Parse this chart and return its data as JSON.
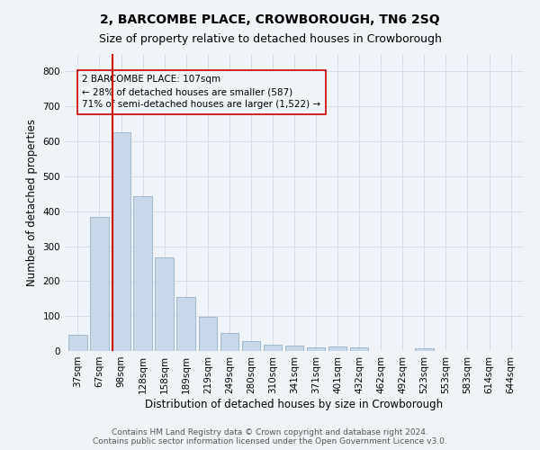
{
  "title": "2, BARCOMBE PLACE, CROWBOROUGH, TN6 2SQ",
  "subtitle": "Size of property relative to detached houses in Crowborough",
  "xlabel": "Distribution of detached houses by size in Crowborough",
  "ylabel": "Number of detached properties",
  "categories": [
    "37sqm",
    "67sqm",
    "98sqm",
    "128sqm",
    "158sqm",
    "189sqm",
    "219sqm",
    "249sqm",
    "280sqm",
    "310sqm",
    "341sqm",
    "371sqm",
    "401sqm",
    "432sqm",
    "462sqm",
    "492sqm",
    "523sqm",
    "553sqm",
    "583sqm",
    "614sqm",
    "644sqm"
  ],
  "values": [
    47,
    385,
    625,
    442,
    268,
    155,
    97,
    52,
    28,
    17,
    16,
    10,
    12,
    10,
    0,
    0,
    7,
    0,
    0,
    0,
    0
  ],
  "bar_color": "#c8d8e8",
  "bar_edgecolor": "#a0b8cc",
  "vline_x_index": 2,
  "vline_color": "#cc0000",
  "annotation_text": "2 BARCOMBE PLACE: 107sqm\n← 28% of detached houses are smaller (587)\n71% of semi-detached houses are larger (1,522) →",
  "annotation_box_edgecolor": "#cc0000",
  "ylim": [
    0,
    850
  ],
  "yticks": [
    0,
    100,
    200,
    300,
    400,
    500,
    600,
    700,
    800
  ],
  "grid_color": "#d0d8e8",
  "background_color": "#f0f4f8",
  "footer": "Contains HM Land Registry data © Crown copyright and database right 2024.\nContains public sector information licensed under the Open Government Licence v3.0.",
  "title_fontsize": 10,
  "subtitle_fontsize": 9,
  "xlabel_fontsize": 8.5,
  "ylabel_fontsize": 8.5,
  "tick_fontsize": 7.5,
  "annotation_fontsize": 7.5,
  "footer_fontsize": 6.5
}
